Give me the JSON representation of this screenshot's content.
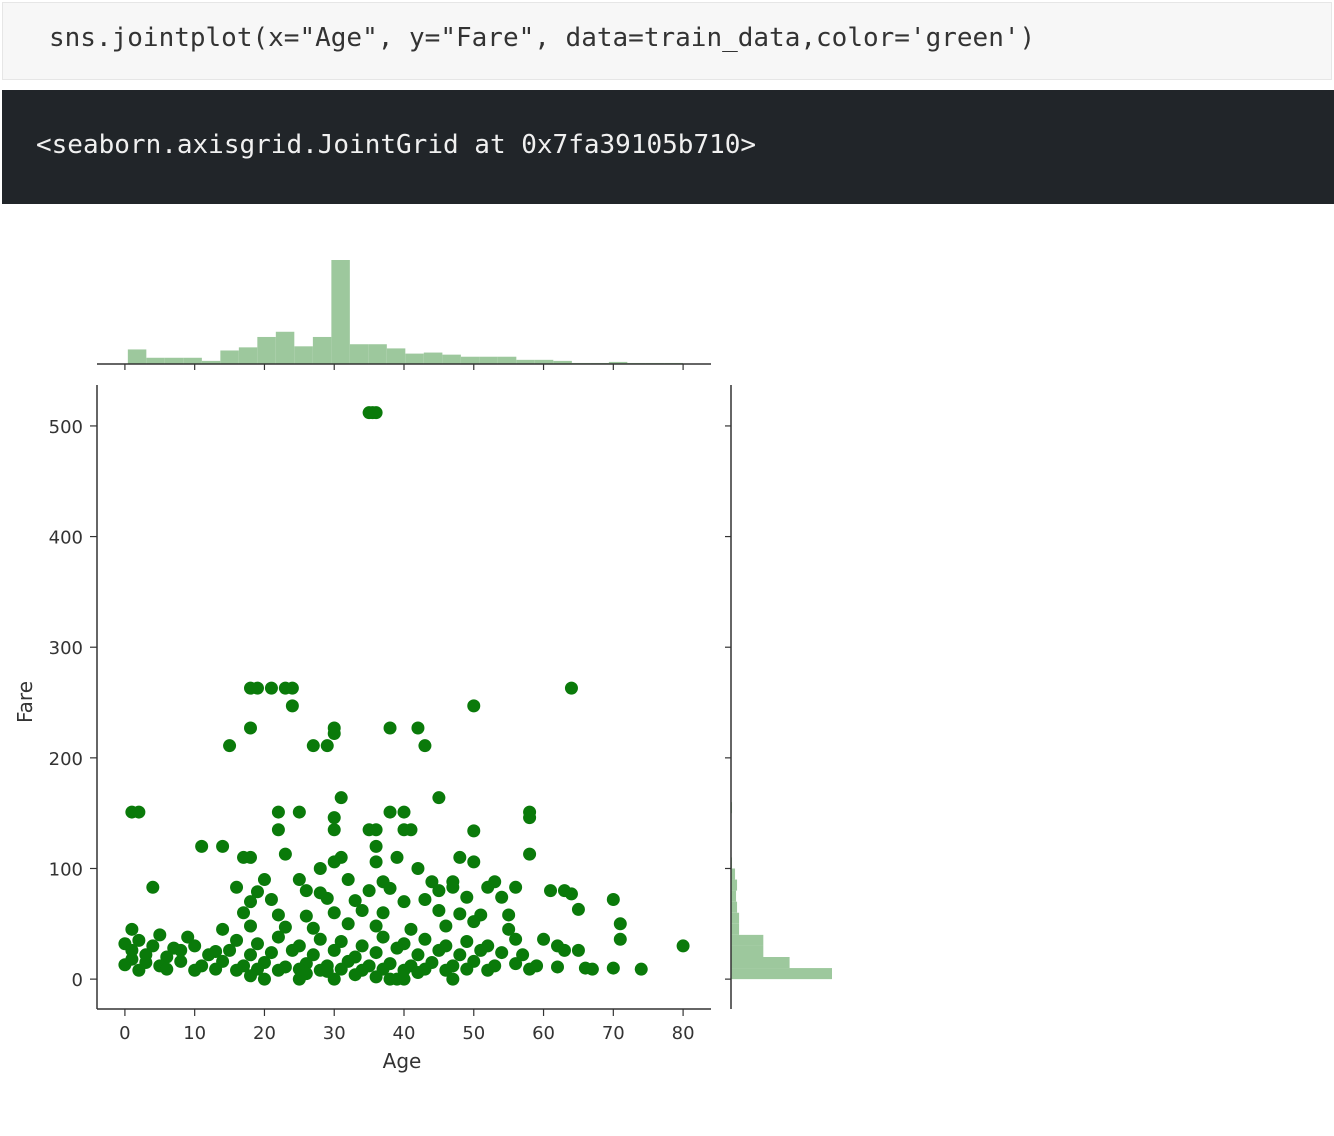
{
  "code_cell": {
    "source": "sns.jointplot(x=\"Age\", y=\"Fare\", data=train_data,color='green')"
  },
  "output_cell": {
    "text": "<seaborn.axisgrid.JointGrid at 0x7fa39105b710>"
  },
  "colors": {
    "scatter": "#0a7a0a",
    "histogram": "#9dc89d",
    "axis": "#333333",
    "code_bg": "#f7f7f7",
    "output_bg": "#212529"
  },
  "chart_data": {
    "type": "scatter",
    "title": "",
    "xlabel": "Age",
    "ylabel": "Fare",
    "xlim": [
      -4,
      84
    ],
    "ylim": [
      -27,
      537
    ],
    "xticks": [
      0,
      10,
      20,
      30,
      40,
      50,
      60,
      70,
      80
    ],
    "yticks": [
      0,
      100,
      200,
      300,
      400,
      500
    ],
    "grid": false,
    "legend": "none",
    "points": [
      [
        35,
        512
      ],
      [
        36,
        512
      ],
      [
        35.5,
        512
      ],
      [
        18,
        263
      ],
      [
        19,
        263
      ],
      [
        21,
        263
      ],
      [
        23,
        263
      ],
      [
        24,
        263
      ],
      [
        64,
        263
      ],
      [
        24,
        247
      ],
      [
        50,
        247
      ],
      [
        18,
        227
      ],
      [
        30,
        227
      ],
      [
        30,
        222
      ],
      [
        38,
        227
      ],
      [
        42,
        227
      ],
      [
        15,
        211
      ],
      [
        27,
        211
      ],
      [
        29,
        211
      ],
      [
        43,
        211
      ],
      [
        31,
        164
      ],
      [
        45,
        164
      ],
      [
        1,
        151
      ],
      [
        2,
        151
      ],
      [
        22,
        151
      ],
      [
        25,
        151
      ],
      [
        38,
        151
      ],
      [
        40,
        151
      ],
      [
        58,
        151
      ],
      [
        58,
        146
      ],
      [
        30,
        146
      ],
      [
        22,
        135
      ],
      [
        30,
        135
      ],
      [
        35,
        135
      ],
      [
        36,
        135
      ],
      [
        40,
        135
      ],
      [
        41,
        135
      ],
      [
        50,
        134
      ],
      [
        11,
        120
      ],
      [
        14,
        120
      ],
      [
        36,
        120
      ],
      [
        17,
        110
      ],
      [
        18,
        110
      ],
      [
        23,
        113
      ],
      [
        31,
        110
      ],
      [
        39,
        110
      ],
      [
        48,
        110
      ],
      [
        58,
        113
      ],
      [
        36,
        106
      ],
      [
        50,
        106
      ],
      [
        30,
        106
      ],
      [
        28,
        100
      ],
      [
        42,
        100
      ],
      [
        20,
        90
      ],
      [
        25,
        90
      ],
      [
        32,
        90
      ],
      [
        37,
        88
      ],
      [
        44,
        88
      ],
      [
        47,
        88
      ],
      [
        53,
        88
      ],
      [
        4,
        83
      ],
      [
        16,
        83
      ],
      [
        19,
        79
      ],
      [
        26,
        80
      ],
      [
        28,
        78
      ],
      [
        35,
        80
      ],
      [
        38,
        82
      ],
      [
        45,
        80
      ],
      [
        47,
        83
      ],
      [
        52,
        83
      ],
      [
        56,
        83
      ],
      [
        61,
        80
      ],
      [
        63,
        80
      ],
      [
        64,
        77
      ],
      [
        18,
        70
      ],
      [
        21,
        72
      ],
      [
        29,
        73
      ],
      [
        33,
        71
      ],
      [
        40,
        70
      ],
      [
        43,
        72
      ],
      [
        49,
        74
      ],
      [
        54,
        74
      ],
      [
        70,
        72
      ],
      [
        17,
        60
      ],
      [
        22,
        58
      ],
      [
        26,
        57
      ],
      [
        30,
        60
      ],
      [
        34,
        62
      ],
      [
        37,
        60
      ],
      [
        45,
        62
      ],
      [
        48,
        59
      ],
      [
        51,
        58
      ],
      [
        55,
        58
      ],
      [
        65,
        63
      ],
      [
        1,
        45
      ],
      [
        5,
        40
      ],
      [
        9,
        38
      ],
      [
        14,
        45
      ],
      [
        18,
        48
      ],
      [
        23,
        47
      ],
      [
        27,
        46
      ],
      [
        32,
        50
      ],
      [
        36,
        48
      ],
      [
        41,
        45
      ],
      [
        46,
        48
      ],
      [
        50,
        52
      ],
      [
        55,
        45
      ],
      [
        71,
        50
      ],
      [
        0,
        32
      ],
      [
        2,
        35
      ],
      [
        4,
        30
      ],
      [
        7,
        28
      ],
      [
        10,
        30
      ],
      [
        13,
        25
      ],
      [
        16,
        35
      ],
      [
        19,
        32
      ],
      [
        22,
        38
      ],
      [
        25,
        30
      ],
      [
        28,
        36
      ],
      [
        31,
        34
      ],
      [
        34,
        30
      ],
      [
        37,
        38
      ],
      [
        40,
        32
      ],
      [
        43,
        36
      ],
      [
        46,
        30
      ],
      [
        49,
        34
      ],
      [
        52,
        30
      ],
      [
        56,
        36
      ],
      [
        60,
        36
      ],
      [
        62,
        30
      ],
      [
        71,
        36
      ],
      [
        1,
        26
      ],
      [
        3,
        22
      ],
      [
        6,
        20
      ],
      [
        8,
        26
      ],
      [
        12,
        22
      ],
      [
        15,
        26
      ],
      [
        18,
        22
      ],
      [
        21,
        24
      ],
      [
        24,
        26
      ],
      [
        27,
        22
      ],
      [
        30,
        26
      ],
      [
        33,
        20
      ],
      [
        36,
        24
      ],
      [
        39,
        28
      ],
      [
        42,
        22
      ],
      [
        45,
        26
      ],
      [
        48,
        22
      ],
      [
        51,
        26
      ],
      [
        54,
        24
      ],
      [
        57,
        22
      ],
      [
        63,
        26
      ],
      [
        65,
        26
      ],
      [
        80,
        30
      ],
      [
        0,
        13
      ],
      [
        1,
        18
      ],
      [
        3,
        15
      ],
      [
        5,
        12
      ],
      [
        8,
        16
      ],
      [
        11,
        12
      ],
      [
        14,
        16
      ],
      [
        17,
        12
      ],
      [
        20,
        15
      ],
      [
        23,
        11
      ],
      [
        26,
        14
      ],
      [
        29,
        12
      ],
      [
        32,
        16
      ],
      [
        35,
        12
      ],
      [
        38,
        14
      ],
      [
        41,
        12
      ],
      [
        44,
        15
      ],
      [
        47,
        12
      ],
      [
        50,
        16
      ],
      [
        53,
        12
      ],
      [
        56,
        14
      ],
      [
        59,
        12
      ],
      [
        62,
        11
      ],
      [
        66,
        10
      ],
      [
        70,
        10
      ],
      [
        74,
        9
      ],
      [
        2,
        8
      ],
      [
        6,
        9
      ],
      [
        10,
        8
      ],
      [
        13,
        9
      ],
      [
        16,
        8
      ],
      [
        19,
        9
      ],
      [
        22,
        8
      ],
      [
        25,
        9
      ],
      [
        28,
        8
      ],
      [
        31,
        9
      ],
      [
        34,
        8
      ],
      [
        37,
        9
      ],
      [
        40,
        8
      ],
      [
        43,
        9
      ],
      [
        46,
        8
      ],
      [
        49,
        9
      ],
      [
        52,
        8
      ],
      [
        58,
        9
      ],
      [
        67,
        9
      ],
      [
        18,
        3
      ],
      [
        25,
        0
      ],
      [
        30,
        0
      ],
      [
        36,
        2
      ],
      [
        38,
        0
      ],
      [
        39,
        0
      ],
      [
        40,
        0
      ],
      [
        47,
        0
      ],
      [
        20,
        0
      ],
      [
        26,
        5
      ],
      [
        33,
        4
      ],
      [
        42,
        6
      ],
      [
        29,
        7
      ]
    ],
    "x_marginal_histogram": {
      "bin_edges": [
        0.42,
        3.07,
        5.72,
        8.37,
        11.03,
        13.68,
        16.33,
        18.98,
        21.63,
        24.28,
        26.94,
        29.59,
        32.24,
        34.89,
        37.54,
        40.19,
        42.84,
        45.5,
        48.15,
        50.8,
        53.45,
        56.1,
        58.75,
        61.4,
        64.06,
        66.71,
        69.36,
        72.01,
        74.66,
        77.31,
        80.0
      ],
      "counts": [
        14,
        6,
        6,
        6,
        3,
        13,
        16,
        26,
        31,
        17,
        26,
        100,
        19,
        19,
        15,
        10,
        11,
        9,
        7,
        7,
        7,
        4,
        4,
        3,
        1,
        1,
        2,
        1,
        1,
        1
      ]
    },
    "y_marginal_histogram": {
      "bin_edges": [
        0,
        10,
        20,
        30,
        40,
        50,
        60,
        70,
        80,
        90,
        100,
        110,
        120,
        130,
        140,
        150,
        160
      ],
      "counts": [
        100,
        58,
        32,
        32,
        8,
        8,
        6,
        5,
        6,
        4,
        1,
        0,
        0,
        0,
        0,
        1
      ]
    }
  }
}
